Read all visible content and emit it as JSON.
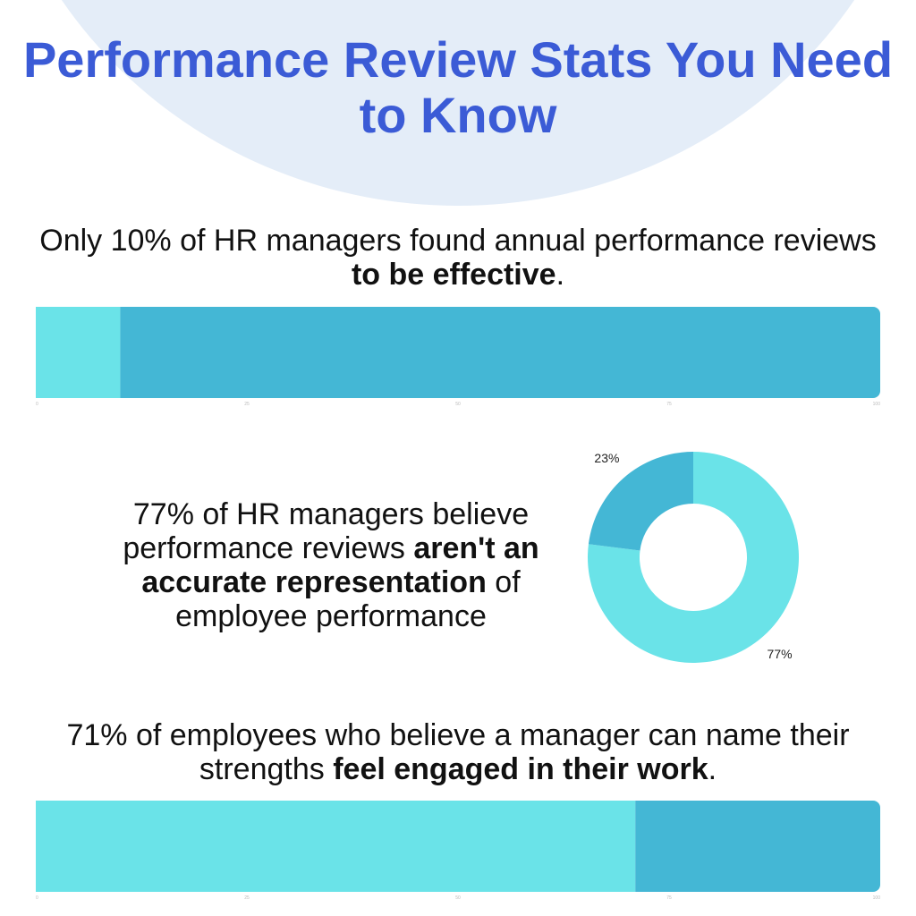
{
  "title": "Performance Review Stats You Need to Know",
  "colors": {
    "primary": "#6ae3e8",
    "secondary": "#44b7d5",
    "title": "#3b5bd6",
    "arc": "#e4edf8"
  },
  "stats": [
    {
      "pre": "Only 10% of HR managers found annual performance reviews ",
      "bold": "to be effective",
      "post": "."
    },
    {
      "pre": "77% of HR managers believe performance reviews ",
      "bold": "aren't an accurate representation",
      "post": " of employee performance"
    },
    {
      "pre": "71% of employees who believe a manager can name their strengths ",
      "bold": "feel engaged in their work",
      "post": "."
    }
  ],
  "chart_data": [
    {
      "type": "bar",
      "orientation": "horizontal-stacked",
      "xlim": [
        0,
        100
      ],
      "x_ticks": [
        "0",
        "25",
        "50",
        "75",
        "100"
      ],
      "series": [
        {
          "values": [
            10
          ]
        },
        {
          "values": [
            90
          ]
        }
      ]
    },
    {
      "type": "pie",
      "donut": true,
      "slices": [
        {
          "label": "77%",
          "value": 77
        },
        {
          "label": "23%",
          "value": 23
        }
      ]
    },
    {
      "type": "bar",
      "orientation": "horizontal-stacked",
      "xlim": [
        0,
        100
      ],
      "x_ticks": [
        "0",
        "25",
        "50",
        "75",
        "100"
      ],
      "series": [
        {
          "values": [
            71
          ]
        },
        {
          "values": [
            29
          ]
        }
      ]
    }
  ]
}
